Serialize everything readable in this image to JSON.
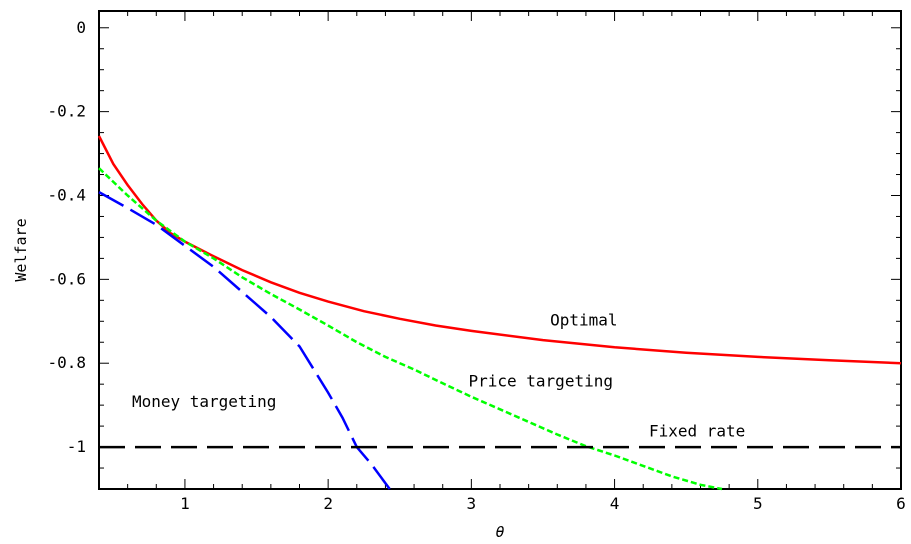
{
  "chart_data": {
    "type": "line",
    "xlabel": "θ",
    "ylabel": "Welfare",
    "xlim": [
      0.4,
      6
    ],
    "ylim": [
      -1.1,
      0.04
    ],
    "x_ticks": [
      1,
      2,
      3,
      4,
      5,
      6
    ],
    "x_tick_labels": [
      "1",
      "2",
      "3",
      "4",
      "5",
      "6"
    ],
    "y_ticks": [
      0,
      -0.2,
      -0.4,
      -0.6,
      -0.8,
      -1
    ],
    "y_tick_labels": [
      "0",
      "-0.2",
      "-0.4",
      "-0.6",
      "-0.8",
      "-1"
    ],
    "grid": false,
    "annotations": [
      {
        "text": "Optimal",
        "x": 3.55,
        "y": -0.71
      },
      {
        "text": "Price targeting",
        "x": 2.98,
        "y": -0.855
      },
      {
        "text": "Money targeting",
        "x": 0.63,
        "y": -0.905
      },
      {
        "text": "Fixed rate",
        "x": 4.24,
        "y": -0.975
      }
    ],
    "series": [
      {
        "color": "#ff0000",
        "style": "solid",
        "x": [
          0.4,
          0.5,
          0.6,
          0.7,
          0.8,
          0.9,
          1.0,
          1.2,
          1.4,
          1.6,
          1.8,
          2.0,
          2.25,
          2.5,
          2.75,
          3.0,
          3.5,
          4.0,
          4.5,
          5.0,
          5.5,
          6.0
        ],
        "y": [
          -0.258,
          -0.325,
          -0.375,
          -0.42,
          -0.46,
          -0.49,
          -0.51,
          -0.545,
          -0.578,
          -0.607,
          -0.632,
          -0.653,
          -0.676,
          -0.694,
          -0.71,
          -0.723,
          -0.745,
          -0.762,
          -0.775,
          -0.785,
          -0.793,
          -0.8
        ]
      },
      {
        "color": "#00ff00",
        "style": "dotted",
        "x": [
          0.4,
          0.6,
          0.8,
          1.0,
          1.2,
          1.4,
          1.6,
          1.8,
          2.0,
          2.2,
          2.4,
          2.6,
          2.8,
          3.0,
          3.2,
          3.4,
          3.6,
          3.8,
          4.0,
          4.2,
          4.4,
          4.6,
          4.75
        ],
        "y": [
          -0.335,
          -0.4,
          -0.46,
          -0.51,
          -0.55,
          -0.595,
          -0.635,
          -0.672,
          -0.71,
          -0.75,
          -0.785,
          -0.815,
          -0.848,
          -0.88,
          -0.91,
          -0.94,
          -0.97,
          -0.998,
          -1.02,
          -1.045,
          -1.07,
          -1.09,
          -1.1
        ]
      },
      {
        "color": "#0000ff",
        "style": "dashed",
        "x": [
          0.4,
          0.6,
          0.8,
          1.0,
          1.2,
          1.4,
          1.6,
          1.8,
          2.0,
          2.1,
          2.2,
          2.3,
          2.43
        ],
        "y": [
          -0.392,
          -0.43,
          -0.47,
          -0.52,
          -0.57,
          -0.63,
          -0.69,
          -0.76,
          -0.87,
          -0.93,
          -1.0,
          -1.04,
          -1.1
        ]
      },
      {
        "color": "#000000",
        "style": "longdash",
        "x": [
          0.4,
          6.0
        ],
        "y": [
          -1.0,
          -1.0
        ]
      }
    ]
  }
}
